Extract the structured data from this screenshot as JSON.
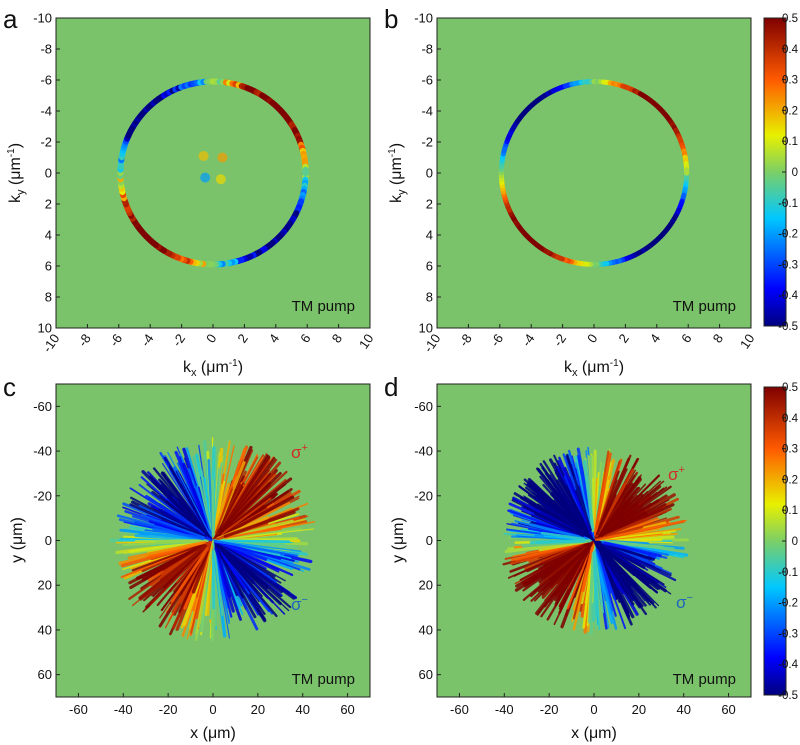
{
  "panels": [
    {
      "letter": "a",
      "type": "heatmap",
      "xlabel": "k",
      "xlabel_sub": "x",
      "xlabel_unit": " (μm",
      "xlabel_sup": "-1",
      "xlabel_close": ")",
      "ylabel": "k",
      "ylabel_sub": "y",
      "ylabel_unit": " (μm",
      "ylabel_sup": "-1",
      "ylabel_close": ")",
      "annotation": "TM pump",
      "xticks": [
        "-10",
        "-8",
        "-6",
        "-4",
        "-2",
        "0",
        "2",
        "4",
        "6",
        "8",
        "10"
      ],
      "yticks": [
        "-10",
        "-8",
        "-6",
        "-4",
        "-2",
        "0",
        "2",
        "4",
        "6",
        "8",
        "10"
      ]
    },
    {
      "letter": "b",
      "type": "heatmap",
      "xlabel": "k",
      "xlabel_sub": "x",
      "xlabel_unit": " (μm",
      "xlabel_sup": "-1",
      "xlabel_close": ")",
      "ylabel": "k",
      "ylabel_sub": "y",
      "ylabel_unit": " (μm",
      "ylabel_sup": "-1",
      "ylabel_close": ")",
      "annotation": "TM pump",
      "xticks": [
        "-10",
        "-8",
        "-6",
        "-4",
        "-2",
        "0",
        "2",
        "4",
        "6",
        "8",
        "10"
      ],
      "yticks": [
        "-10",
        "-8",
        "-6",
        "-4",
        "-2",
        "0",
        "2",
        "4",
        "6",
        "8",
        "10"
      ]
    },
    {
      "letter": "c",
      "type": "heatmap",
      "xlabel": "x (μm)",
      "ylabel": "y (μm)",
      "annotation": "TM pump",
      "sigma_plus": "σ",
      "sigma_plus_sup": "+",
      "sigma_minus": "σ",
      "sigma_minus_sup": "−",
      "xticks": [
        "-60",
        "-40",
        "-20",
        "0",
        "20",
        "40",
        "60"
      ],
      "yticks": [
        "-60",
        "-40",
        "-20",
        "0",
        "20",
        "40",
        "60"
      ]
    },
    {
      "letter": "d",
      "type": "heatmap",
      "xlabel": "x (μm)",
      "ylabel": "y (μm)",
      "annotation": "TM pump",
      "sigma_plus": "σ",
      "sigma_plus_sup": "+",
      "sigma_minus": "σ",
      "sigma_minus_sup": "−",
      "xticks": [
        "-60",
        "-40",
        "-20",
        "0",
        "20",
        "40",
        "60"
      ],
      "yticks": [
        "-60",
        "-40",
        "-20",
        "0",
        "20",
        "40",
        "60"
      ]
    }
  ],
  "colorbars": [
    {
      "ticks": [
        "0.5",
        "0.4",
        "0.3",
        "0.2",
        "0.1",
        "0",
        "-0.1",
        "-0.2",
        "-0.3",
        "-0.4",
        "-0.5"
      ]
    },
    {
      "ticks": [
        "0.5",
        "0.4",
        "0.3",
        "0.2",
        "0.1",
        "0",
        "-0.1",
        "-0.2",
        "-0.3",
        "-0.4",
        "-0.5"
      ]
    }
  ],
  "chart_data": [
    {
      "type": "heatmap",
      "panel": "a",
      "x_range": [
        -10,
        10
      ],
      "y_range": [
        -10,
        10
      ],
      "value_range": [
        -0.5,
        0.5
      ],
      "ring_radius": 5.9,
      "pattern": "ring; positive toward upper-right and lower-left, negative toward upper-left and lower-right"
    },
    {
      "type": "heatmap",
      "panel": "b",
      "x_range": [
        -10,
        10
      ],
      "y_range": [
        -10,
        10
      ],
      "value_range": [
        -0.5,
        0.5
      ],
      "ring_radius": 5.9,
      "pattern": "ring; positive toward upper-right and lower-left, negative toward upper-left and lower-right"
    },
    {
      "type": "heatmap",
      "panel": "c",
      "x_range": [
        -70,
        70
      ],
      "y_range": [
        -70,
        70
      ],
      "value_range": [
        -0.5,
        0.5
      ],
      "pattern": "four-lobe spot, radius ~42 μm; positive upper-right and lower-left, negative upper-left and lower-right"
    },
    {
      "type": "heatmap",
      "panel": "d",
      "x_range": [
        -70,
        70
      ],
      "y_range": [
        -70,
        70
      ],
      "value_range": [
        -0.5,
        0.5
      ],
      "pattern": "four-lobe spot, radius ~38 μm; positive upper-right and lower-left, negative upper-left and lower-right"
    }
  ]
}
